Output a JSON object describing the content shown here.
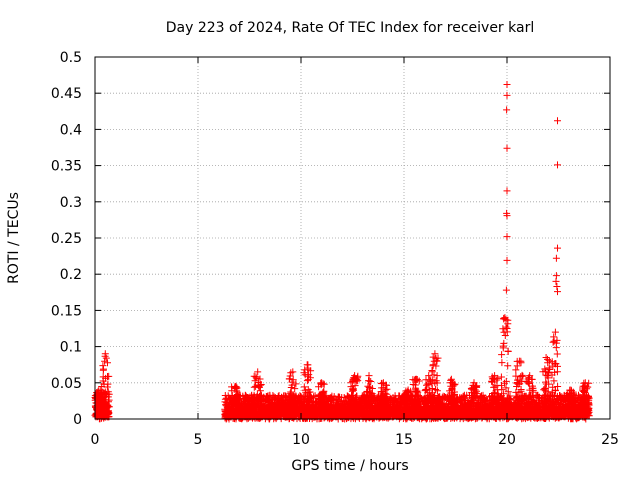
{
  "chart_data": {
    "type": "scatter",
    "title": "Day 223 of 2024, Rate Of TEC Index for receiver karl",
    "xlabel": "GPS time / hours",
    "ylabel": "ROTI / TECUs",
    "xlim": [
      0,
      25
    ],
    "ylim": [
      0,
      0.5
    ],
    "xticks": [
      0,
      5,
      10,
      15,
      20,
      25
    ],
    "xtick_labels": [
      "0",
      "5",
      "10",
      "15",
      "20",
      "25"
    ],
    "yticks": [
      0,
      0.05,
      0.1,
      0.15,
      0.2,
      0.25,
      0.3,
      0.35,
      0.4,
      0.45,
      0.5
    ],
    "ytick_labels": [
      "0",
      "0.05",
      "0.1",
      "0.15",
      "0.2",
      "0.25",
      "0.3",
      "0.35",
      "0.4",
      "0.45",
      "0.5"
    ],
    "grid": true,
    "marker": "+",
    "color": "#ff0000",
    "series": [
      {
        "name": "ROTI",
        "segments": [
          {
            "x_start": 0.0,
            "x_end": 0.7,
            "baseline_max": 0.035
          },
          {
            "x_start": 6.3,
            "x_end": 24.0,
            "baseline_max": 0.03
          }
        ],
        "bursts": [
          {
            "x": 0.5,
            "peak": 0.09
          },
          {
            "x": 0.25,
            "peak": 0.04
          },
          {
            "x": 6.8,
            "peak": 0.045
          },
          {
            "x": 7.9,
            "peak": 0.065
          },
          {
            "x": 9.6,
            "peak": 0.065
          },
          {
            "x": 10.3,
            "peak": 0.075
          },
          {
            "x": 11.0,
            "peak": 0.05
          },
          {
            "x": 12.6,
            "peak": 0.06
          },
          {
            "x": 13.3,
            "peak": 0.06
          },
          {
            "x": 14.0,
            "peak": 0.05
          },
          {
            "x": 15.2,
            "peak": 0.04
          },
          {
            "x": 15.6,
            "peak": 0.055
          },
          {
            "x": 16.2,
            "peak": 0.06
          },
          {
            "x": 16.5,
            "peak": 0.09
          },
          {
            "x": 17.3,
            "peak": 0.055
          },
          {
            "x": 18.4,
            "peak": 0.05
          },
          {
            "x": 19.4,
            "peak": 0.06
          },
          {
            "x": 19.9,
            "peak": 0.14
          },
          {
            "x": 20.6,
            "peak": 0.08
          },
          {
            "x": 21.1,
            "peak": 0.06
          },
          {
            "x": 21.9,
            "peak": 0.085
          },
          {
            "x": 22.35,
            "peak": 0.12
          },
          {
            "x": 23.1,
            "peak": 0.04
          },
          {
            "x": 23.8,
            "peak": 0.05
          }
        ],
        "outliers": [
          {
            "x": 20.0,
            "y": 0.462
          },
          {
            "x": 20.0,
            "y": 0.447
          },
          {
            "x": 19.98,
            "y": 0.427
          },
          {
            "x": 20.0,
            "y": 0.374
          },
          {
            "x": 20.0,
            "y": 0.315
          },
          {
            "x": 19.98,
            "y": 0.284
          },
          {
            "x": 20.0,
            "y": 0.281
          },
          {
            "x": 20.0,
            "y": 0.252
          },
          {
            "x": 20.0,
            "y": 0.219
          },
          {
            "x": 19.97,
            "y": 0.178
          },
          {
            "x": 19.95,
            "y": 0.127
          },
          {
            "x": 20.0,
            "y": 0.125
          },
          {
            "x": 22.45,
            "y": 0.412
          },
          {
            "x": 22.45,
            "y": 0.351
          },
          {
            "x": 22.45,
            "y": 0.236
          },
          {
            "x": 22.4,
            "y": 0.222
          },
          {
            "x": 22.4,
            "y": 0.198
          },
          {
            "x": 22.38,
            "y": 0.19
          },
          {
            "x": 22.42,
            "y": 0.183
          },
          {
            "x": 22.45,
            "y": 0.176
          }
        ]
      }
    ]
  }
}
